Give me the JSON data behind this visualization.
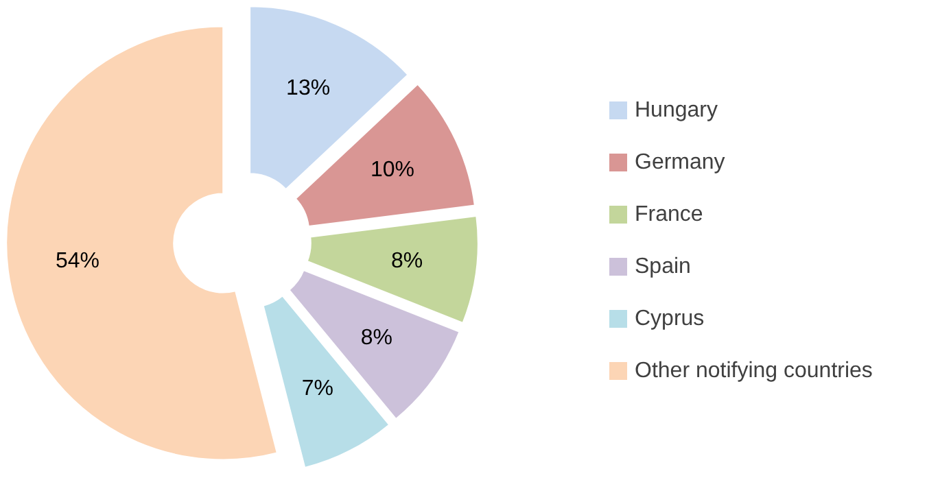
{
  "chart_data": {
    "type": "donut",
    "categories": [
      "Hungary",
      "Germany",
      "France",
      "Spain",
      "Cyprus",
      "Other notifying countries"
    ],
    "values": [
      13,
      10,
      8,
      8,
      7,
      54
    ],
    "colors": [
      "#c6d9f1",
      "#d99694",
      "#c3d69b",
      "#ccc1da",
      "#b7dee8",
      "#fcd5b5"
    ],
    "value_labels": [
      "13%",
      "10%",
      "8%",
      "8%",
      "7%",
      "54%"
    ],
    "legend": "right"
  }
}
